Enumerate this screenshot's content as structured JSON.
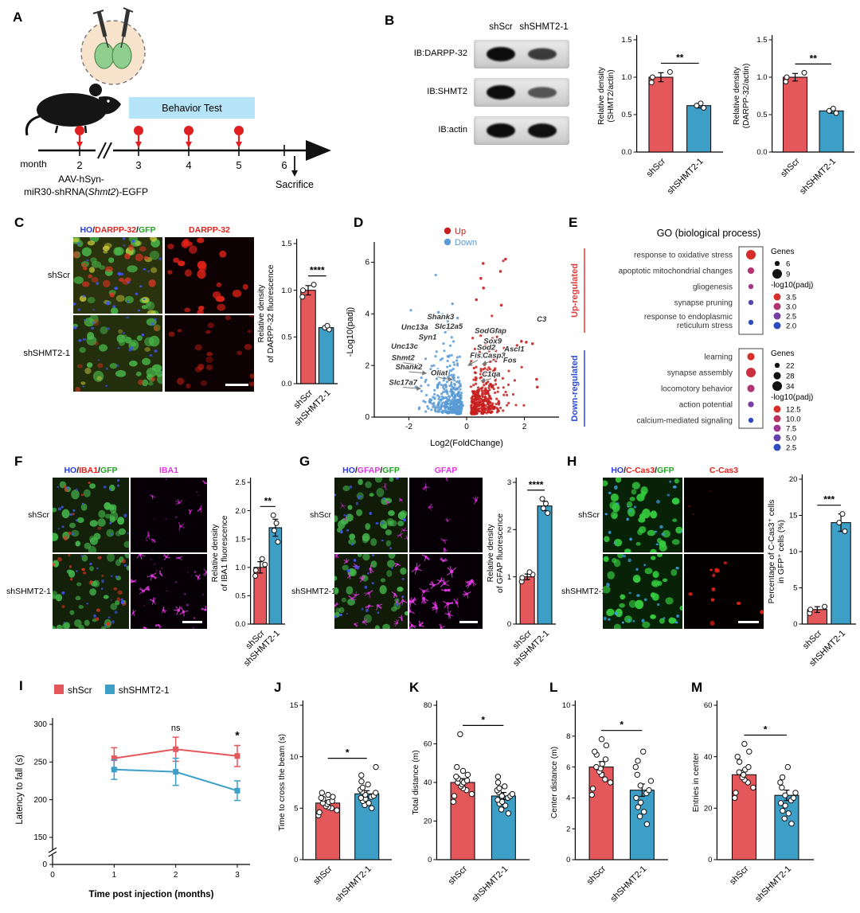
{
  "colors": {
    "group_red": "#E4575B",
    "group_blue": "#3D9EC6",
    "up_red": "#C5201E",
    "down_blue": "#5B9BD5",
    "behavior_box": "#B5E3F7",
    "marker_red": "#E02020",
    "ho_blue": "#2A3BE8",
    "gfp_green": "#1FA41F",
    "darpp_red": "#E8201C",
    "magenta": "#E233E2"
  },
  "groups": [
    "shScr",
    "shSHMT2-1"
  ],
  "panels": {
    "A": {
      "label": "A",
      "month_label": "month",
      "month_ticks": [
        "2",
        "3",
        "4",
        "5",
        "6"
      ],
      "behavior_test": "Behavior Test",
      "sacrifice": "Sacrifice",
      "injection_line1": "AAV-hSyn-",
      "injection_line2_pre": "miR30-shRNA(",
      "injection_gene": "Shmt2",
      "injection_line2_post": ")-EGFP"
    },
    "B": {
      "label": "B",
      "lane_headers": [
        "shScr",
        "shSHMT2-1"
      ],
      "blot_rows": [
        {
          "label": "IB:DARPP-32",
          "bands": [
            1,
            0.68
          ]
        },
        {
          "label": "IB:SHMT2",
          "bands": [
            1,
            0.5
          ]
        },
        {
          "label": "IB:actin",
          "bands": [
            1,
            0.97
          ]
        }
      ]
    },
    "C": {
      "label": "C",
      "header_merge": [
        {
          "text": "HO",
          "color": "#2A3BE8"
        },
        {
          "text": "/",
          "color": "#111111"
        },
        {
          "text": "DARPP-32",
          "color": "#E8201C"
        },
        {
          "text": "/",
          "color": "#111111"
        },
        {
          "text": "GFP",
          "color": "#1FA41F"
        }
      ],
      "header_single": [
        {
          "text": "DARPP-32",
          "color": "#E8201C"
        }
      ],
      "row_labels": [
        "shScr",
        "shSHMT2-1"
      ]
    },
    "D": {
      "label": "D"
    },
    "E": {
      "label": "E"
    },
    "F": {
      "label": "F",
      "header_merge": [
        {
          "text": "HO",
          "color": "#2A3BE8"
        },
        {
          "text": "/",
          "color": "#111111"
        },
        {
          "text": "IBA1",
          "color": "#E8201C"
        },
        {
          "text": "/",
          "color": "#111111"
        },
        {
          "text": "GFP",
          "color": "#1FA41F"
        }
      ],
      "header_single": [
        {
          "text": "IBA1",
          "color": "#E233E2"
        }
      ],
      "row_labels": [
        "shScr",
        "shSHMT2-1"
      ]
    },
    "G": {
      "label": "G",
      "header_merge": [
        {
          "text": "HO",
          "color": "#2A3BE8"
        },
        {
          "text": "/",
          "color": "#111111"
        },
        {
          "text": "GFAP",
          "color": "#E233E2"
        },
        {
          "text": "/",
          "color": "#111111"
        },
        {
          "text": "GFP",
          "color": "#1FA41F"
        }
      ],
      "header_single": [
        {
          "text": "GFAP",
          "color": "#E233E2"
        }
      ],
      "row_labels": [
        "shScr",
        "shSHMT2-1"
      ]
    },
    "H": {
      "label": "H",
      "header_merge": [
        {
          "text": "HO",
          "color": "#2A3BE8"
        },
        {
          "text": "/",
          "color": "#111111"
        },
        {
          "text": "C-Cas3",
          "color": "#E8201C"
        },
        {
          "text": "/",
          "color": "#111111"
        },
        {
          "text": "GFP",
          "color": "#1FA41F"
        }
      ],
      "header_single": [
        {
          "text": "C-Cas3",
          "color": "#E8201C"
        }
      ],
      "row_labels": [
        "shScr",
        "shSHMT2-1"
      ]
    },
    "I": {
      "label": "I",
      "legend": [
        "shScr",
        "shSHMT2-1"
      ]
    },
    "J": {
      "label": "J"
    },
    "K": {
      "label": "K"
    },
    "L": {
      "label": "L"
    },
    "M": {
      "label": "M"
    }
  },
  "chart_data": [
    {
      "id": "b1",
      "type": "bar",
      "categories": [
        "shScr",
        "shSHMT2-1"
      ],
      "values": [
        1.0,
        0.62
      ],
      "errors": [
        0.06,
        0.03
      ],
      "points": [
        [
          0.93,
          1.0,
          1.07
        ],
        [
          0.59,
          0.62,
          0.65
        ]
      ],
      "ylabel": [
        "Relative density",
        "(SHMT2/actin)"
      ],
      "yticks": [
        "0.0",
        "0.5",
        "1.0",
        "1.5"
      ],
      "ylim": [
        0,
        1.5
      ],
      "sig": "**"
    },
    {
      "id": "b2",
      "type": "bar",
      "categories": [
        "shScr",
        "shSHMT2-1"
      ],
      "values": [
        1.0,
        0.55
      ],
      "errors": [
        0.05,
        0.03
      ],
      "points": [
        [
          0.94,
          1.0,
          1.06
        ],
        [
          0.52,
          0.55,
          0.58
        ]
      ],
      "ylabel": [
        "Relative density",
        "(DARPP-32/actin)"
      ],
      "yticks": [
        "0.0",
        "0.5",
        "1.0",
        "1.5"
      ],
      "ylim": [
        0,
        1.5
      ],
      "sig": "**"
    },
    {
      "id": "c1",
      "type": "bar",
      "categories": [
        "shScr",
        "shSHMT2-1"
      ],
      "values": [
        1.0,
        0.6
      ],
      "errors": [
        0.05,
        0.02
      ],
      "points": [
        [
          0.93,
          1.0,
          1.06
        ],
        [
          0.58,
          0.6,
          0.62
        ]
      ],
      "ylabel": [
        "Relative density",
        "of DARPP-32 fluorescence"
      ],
      "yticks": [
        "0.0",
        "0.5",
        "1.0",
        "1.5"
      ],
      "ylim": [
        0,
        1.5
      ],
      "sig": "****"
    },
    {
      "id": "f1",
      "type": "bar",
      "categories": [
        "shScr",
        "shSHMT2-1"
      ],
      "values": [
        1.0,
        1.7
      ],
      "errors": [
        0.1,
        0.15
      ],
      "points": [
        [
          0.85,
          0.95,
          1.05,
          1.15
        ],
        [
          1.45,
          1.65,
          1.78,
          1.92
        ]
      ],
      "ylabel": [
        "Relative density",
        "of IBA1 fluorescence"
      ],
      "yticks": [
        "0.0",
        "0.5",
        "1.0",
        "1.5",
        "2.0",
        "2.5"
      ],
      "ylim": [
        0,
        2.5
      ],
      "sig": "**"
    },
    {
      "id": "g1",
      "type": "bar",
      "categories": [
        "shScr",
        "shSHMT2-1"
      ],
      "values": [
        1.0,
        2.5
      ],
      "errors": [
        0.06,
        0.1
      ],
      "points": [
        [
          0.9,
          0.98,
          1.05,
          1.1
        ],
        [
          2.35,
          2.45,
          2.55,
          2.65
        ]
      ],
      "ylabel": [
        "Relative density",
        "of GFAP fluorescence"
      ],
      "yticks": [
        "0",
        "1",
        "2",
        "3"
      ],
      "ylim": [
        0,
        3
      ],
      "sig": "****"
    },
    {
      "id": "h1",
      "type": "bar",
      "categories": [
        "shScr",
        "shSHMT2-1"
      ],
      "values": [
        2,
        14
      ],
      "errors": [
        0.4,
        1.2
      ],
      "points": [
        [
          1.5,
          2.0,
          2.4
        ],
        [
          12.8,
          14.0,
          15.2
        ]
      ],
      "ylabel": [
        "Percentage of C-Cas3⁺ cells",
        "in GFP⁺ cells (%)"
      ],
      "yticks": [
        "0",
        "5",
        "10",
        "15",
        "20"
      ],
      "ylim": [
        0,
        20
      ],
      "sig": "***"
    },
    {
      "id": "j1",
      "type": "bar",
      "dot_r": 3.2,
      "categories": [
        "shScr",
        "shSHMT2-1"
      ],
      "values": [
        5.5,
        6.4
      ],
      "errors": [
        0.25,
        0.3
      ],
      "points": [
        [
          4.3,
          4.6,
          4.8,
          5.0,
          5.1,
          5.2,
          5.4,
          5.5,
          5.6,
          5.7,
          5.9,
          6.0,
          6.1,
          6.3,
          6.5
        ],
        [
          5.0,
          5.3,
          5.5,
          5.7,
          5.9,
          6.0,
          6.1,
          6.2,
          6.3,
          6.5,
          6.6,
          6.8,
          7.0,
          7.3,
          7.6,
          8.2,
          9.0
        ]
      ],
      "ylabel": [
        "Time to cross the beam (s)"
      ],
      "yticks": [
        "0",
        "5",
        "10",
        "15"
      ],
      "ylim": [
        0,
        15
      ],
      "sig": "*"
    },
    {
      "id": "k1",
      "type": "bar",
      "dot_r": 3.2,
      "categories": [
        "shScr",
        "shSHMT2-1"
      ],
      "values": [
        40,
        33
      ],
      "errors": [
        2,
        1.8
      ],
      "points": [
        [
          30,
          33,
          34,
          36,
          37,
          38,
          39,
          40,
          40,
          41,
          42,
          43,
          44,
          46,
          48,
          65
        ],
        [
          24,
          26,
          28,
          29,
          30,
          31,
          32,
          33,
          33,
          34,
          35,
          36,
          37,
          38,
          40,
          43
        ]
      ],
      "ylabel": [
        "Total distance (m)"
      ],
      "yticks": [
        "0",
        "20",
        "40",
        "60",
        "80"
      ],
      "ylim": [
        0,
        80
      ],
      "sig": "*"
    },
    {
      "id": "l1",
      "type": "bar",
      "dot_r": 3.2,
      "categories": [
        "shScr",
        "shSHMT2-1"
      ],
      "values": [
        6,
        4.5
      ],
      "errors": [
        0.35,
        0.4
      ],
      "points": [
        [
          4.2,
          4.6,
          5.0,
          5.2,
          5.5,
          5.7,
          5.9,
          6.0,
          6.2,
          6.5,
          6.8,
          7.0,
          7.4,
          7.8
        ],
        [
          2.3,
          2.8,
          3.1,
          3.4,
          3.7,
          4.0,
          4.3,
          4.5,
          4.8,
          5.1,
          5.5,
          6.0,
          6.4,
          7.0
        ]
      ],
      "ylabel": [
        "Center distance (m)"
      ],
      "yticks": [
        "0",
        "2",
        "4",
        "6",
        "8",
        "10"
      ],
      "ylim": [
        0,
        10
      ],
      "sig": "*"
    },
    {
      "id": "m1",
      "type": "bar",
      "dot_r": 3.2,
      "categories": [
        "shScr",
        "shSHMT2-1"
      ],
      "values": [
        33,
        25
      ],
      "errors": [
        1.8,
        2
      ],
      "points": [
        [
          24,
          26,
          28,
          30,
          31,
          32,
          33,
          34,
          35,
          36,
          38,
          40,
          42,
          45
        ],
        [
          14,
          16,
          18,
          19,
          21,
          22,
          23,
          24,
          25,
          26,
          28,
          30,
          32,
          36
        ]
      ],
      "ylabel": [
        "Entries in center"
      ],
      "yticks": [
        "0",
        "20",
        "40",
        "60"
      ],
      "ylim": [
        0,
        60
      ],
      "sig": "*"
    },
    {
      "id": "volcano",
      "type": "volcano",
      "xlabel": "Log2(FoldChange)",
      "ylabel": "-Log10(padj)",
      "legend": {
        "up": "Up",
        "down": "Down"
      },
      "up_color": "#C5201E",
      "down_color": "#5B9BD5",
      "xlim": [
        -3.2,
        3.2
      ],
      "ylim": [
        0,
        6.6
      ],
      "xticks": [
        -2,
        0,
        2
      ],
      "yticks": [
        0,
        2,
        4,
        6
      ],
      "genes": [
        {
          "g": "Shank3",
          "x": -0.9,
          "y": 3.8
        },
        {
          "g": "Unc13a",
          "x": -1.8,
          "y": 3.4
        },
        {
          "g": "Slc12a5",
          "x": -0.62,
          "y": 3.42
        },
        {
          "g": "Sod1",
          "x": 0.6,
          "y": 3.25
        },
        {
          "g": "Gfap",
          "x": 1.08,
          "y": 3.25
        },
        {
          "g": "C3",
          "x": 2.6,
          "y": 3.7
        },
        {
          "g": "Syn1",
          "x": -1.35,
          "y": 3.0
        },
        {
          "g": "Sox9",
          "x": 0.9,
          "y": 2.85
        },
        {
          "g": "Sod2",
          "x": 0.68,
          "y": 2.6
        },
        {
          "g": "Ascl1",
          "x": 1.65,
          "y": 2.55
        },
        {
          "g": "Unc13c",
          "x": -2.15,
          "y": 2.65
        },
        {
          "g": "Shmt2",
          "x": -2.2,
          "y": 2.2,
          "ax": -1.55,
          "ay": 2.0
        },
        {
          "g": "Fis1",
          "x": 0.38,
          "y": 2.3,
          "ax": 0.05,
          "ay": 2.0
        },
        {
          "g": "Casp3",
          "x": 0.95,
          "y": 2.3,
          "ax": 0.55,
          "ay": 2.05
        },
        {
          "g": "Fos",
          "x": 1.5,
          "y": 2.12
        },
        {
          "g": "Shank2",
          "x": -2.0,
          "y": 1.85,
          "ax": -1.4,
          "ay": 1.7
        },
        {
          "g": "Oliat",
          "x": -0.95,
          "y": 1.62,
          "ax": -0.5,
          "ay": 1.45
        },
        {
          "g": "C1qa",
          "x": 0.85,
          "y": 1.58,
          "ax": 0.5,
          "ay": 1.4
        },
        {
          "g": "Slc17a7",
          "x": -2.2,
          "y": 1.25,
          "ax": -1.6,
          "ay": 1.1
        }
      ]
    },
    {
      "id": "go",
      "type": "dotplot",
      "title": "GO (biological process)",
      "genes_title": "Genes",
      "padj_title": "-log10(padj)",
      "up": {
        "label": "Up-regulated",
        "color": "#E03A3A",
        "grange": [
          6,
          9
        ],
        "prange": [
          2.0,
          3.5
        ],
        "terms": [
          {
            "name": [
              "response to oxidative stress"
            ],
            "genes": 9,
            "padj": 3.5
          },
          {
            "name": [
              "apoptotic mitochondrial changes"
            ],
            "genes": 7,
            "padj": 3.0
          },
          {
            "name": [
              "gliogenesis"
            ],
            "genes": 6,
            "padj": 2.8
          },
          {
            "name": [
              "synapse pruning"
            ],
            "genes": 6,
            "padj": 2.3
          },
          {
            "name": [
              "response to endoplasmic",
              "reticulum stress"
            ],
            "genes": 6,
            "padj": 2.0
          }
        ],
        "genes_legend": [
          6,
          9
        ],
        "padj_legend": [
          3.5,
          3.0,
          2.5,
          2.0
        ]
      },
      "down": {
        "label": "Down-regulated",
        "color": "#2B4BD8",
        "grange": [
          22,
          34
        ],
        "prange": [
          2.5,
          12.5
        ],
        "terms": [
          {
            "name": [
              "learning"
            ],
            "genes": 28,
            "padj": 12.5
          },
          {
            "name": [
              "synapse assembly"
            ],
            "genes": 34,
            "padj": 11.5
          },
          {
            "name": [
              "locomotory behavior"
            ],
            "genes": 28,
            "padj": 9.0
          },
          {
            "name": [
              "action potential"
            ],
            "genes": 24,
            "padj": 6.0
          },
          {
            "name": [
              "calcium-mediated signaling"
            ],
            "genes": 22,
            "padj": 2.5
          }
        ],
        "genes_legend": [
          22,
          28,
          34
        ],
        "padj_legend": [
          12.5,
          10.0,
          7.5,
          5.0,
          2.5
        ]
      }
    },
    {
      "id": "rotarod",
      "type": "line",
      "x": [
        1,
        2,
        3
      ],
      "xticks": [
        0,
        1,
        2,
        3
      ],
      "yticks": [
        0,
        150,
        200,
        250,
        300
      ],
      "ylabel": "Latency to fall (s)",
      "xlabel": "Time post injection (months)",
      "series": [
        {
          "name": "shScr",
          "color": "#E4575B",
          "values": [
            255,
            267,
            258
          ],
          "errors": [
            14,
            16,
            14
          ]
        },
        {
          "name": "shSHMT2-1",
          "color": "#3D9EC6",
          "values": [
            240,
            237,
            212
          ],
          "errors": [
            13,
            18,
            13
          ]
        }
      ],
      "annotations": [
        {
          "x": 2,
          "text": "ns"
        },
        {
          "x": 3,
          "text": "*"
        }
      ]
    }
  ]
}
